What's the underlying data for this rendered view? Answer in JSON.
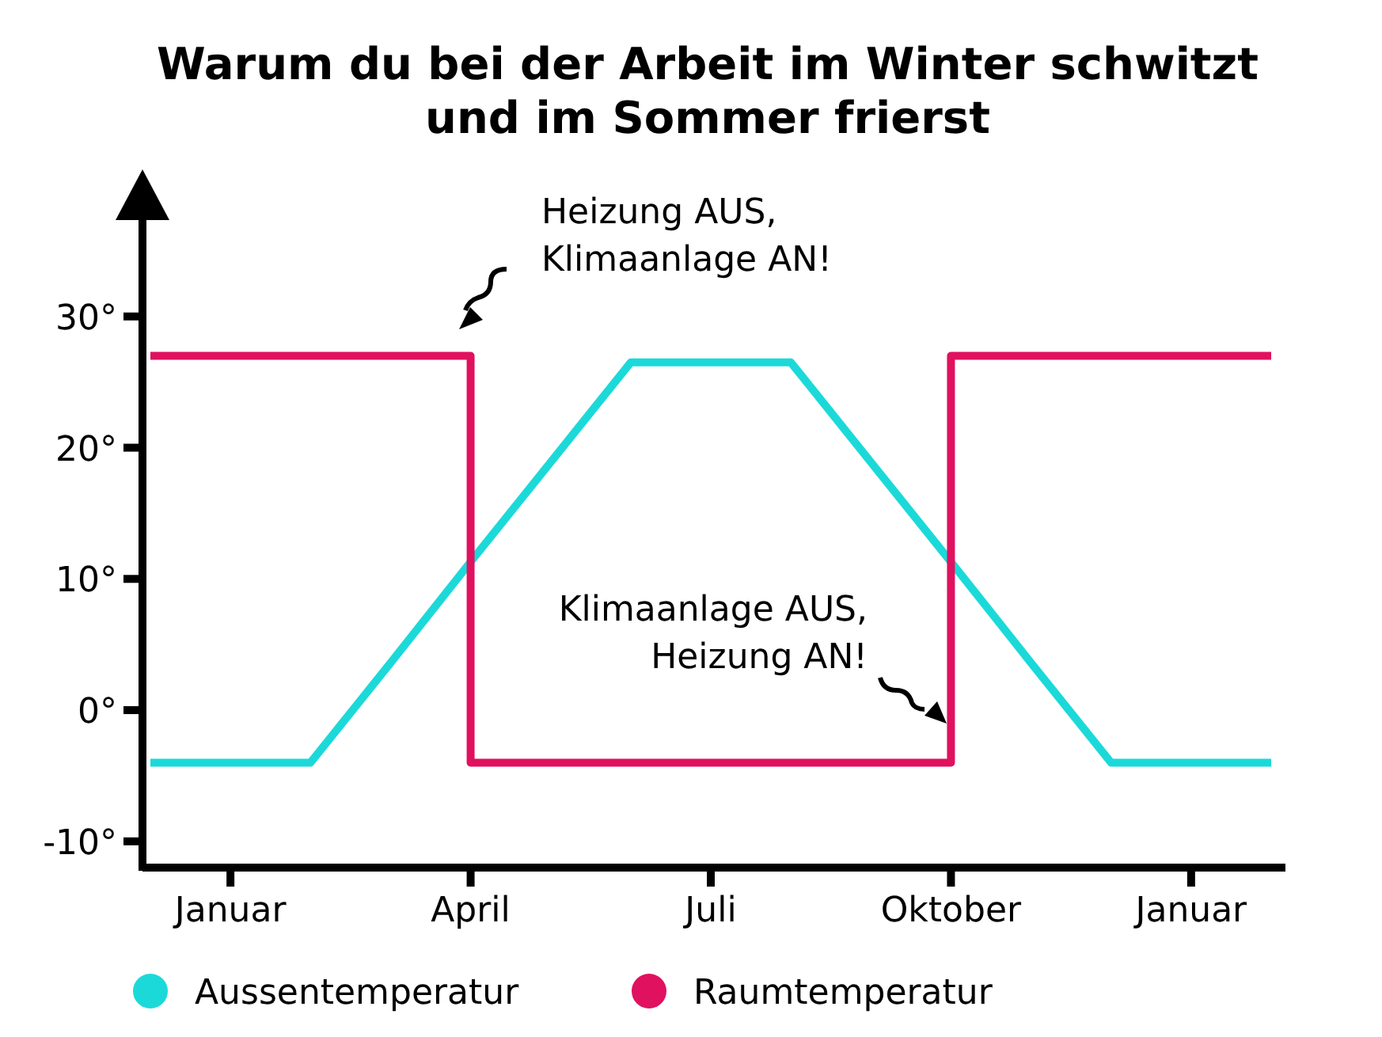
{
  "chart_data": {
    "type": "line",
    "title": "Warum du bei der Arbeit im Winter schwitzt und im Sommer frierst",
    "categories": [
      null,
      "Januar",
      null,
      null,
      "April",
      null,
      null,
      "Juli",
      null,
      null,
      "Oktober",
      null,
      null,
      "Januar",
      null
    ],
    "ylim": [
      -12,
      40
    ],
    "yticks": [
      {
        "value": -10,
        "label": "-10°"
      },
      {
        "value": 0,
        "label": "0°"
      },
      {
        "value": 10,
        "label": "10°"
      },
      {
        "value": 20,
        "label": "20°"
      },
      {
        "value": 30,
        "label": "30°"
      }
    ],
    "grid": false,
    "legend": "bottom",
    "marker": "none",
    "line_style": "solid",
    "series": [
      {
        "name": "Aussentemperatur",
        "color": "#1cd9d9",
        "values": [
          -4,
          -4,
          -4,
          3.6,
          11.3,
          18.9,
          26.5,
          26.5,
          26.5,
          18.9,
          11.3,
          3.6,
          -4,
          -4,
          -4
        ]
      },
      {
        "name": "Raumtemperatur",
        "type": "step",
        "color": "#e0115f",
        "values": [
          27,
          27,
          27,
          27,
          -4,
          -4,
          -4,
          -4,
          -4,
          -4,
          27,
          27,
          27,
          27,
          27
        ]
      }
    ],
    "annotations": [
      "Heizung AUS,\nKlimaanlage AN!",
      "Klimaanlage AUS,\nHeizung AN!"
    ]
  }
}
